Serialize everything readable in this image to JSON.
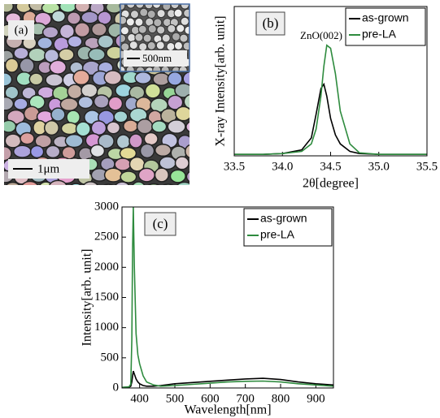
{
  "image_panel": {
    "label": "(a)",
    "scale_bar": "1μm",
    "inset_scale_bar": "500nm"
  },
  "chart_data": [
    {
      "type": "line",
      "label": "(b)",
      "annotation": "ZnO(002)",
      "xlabel": "2θ[degree]",
      "ylabel": "X-ray Intensity[arb. unit]",
      "xlim": [
        33.5,
        35.5
      ],
      "xticks": [
        33.5,
        {
          "value": 34,
          "label": "34.0"
        },
        34.5,
        {
          "value": 35,
          "label": "35.0"
        },
        35.5
      ],
      "ylim": [
        0,
        100
      ],
      "legend": "upper right",
      "x": [
        33.5,
        33.8,
        34.0,
        34.2,
        34.3,
        34.35,
        34.4,
        34.43,
        34.46,
        34.5,
        34.55,
        34.6,
        34.7,
        34.8,
        35.0,
        35.5
      ],
      "series": [
        {
          "name": "as-grown",
          "color": "#000000",
          "values": [
            1,
            1,
            1.5,
            4,
            12,
            28,
            45,
            48,
            40,
            25,
            14,
            8,
            3,
            1.5,
            1,
            1
          ]
        },
        {
          "name": "pre-LA",
          "color": "#2e8b3e",
          "values": [
            1,
            1,
            1.5,
            3,
            8,
            18,
            40,
            60,
            74,
            72,
            55,
            30,
            8,
            2,
            1,
            1
          ]
        }
      ]
    },
    {
      "type": "line",
      "label": "(c)",
      "xlabel": "Wavelength[nm]",
      "ylabel": "Intensity[arb. unit]",
      "xlim": [
        350,
        950
      ],
      "xticks": [
        400,
        500,
        600,
        700,
        800,
        900
      ],
      "ylim": [
        0,
        3000
      ],
      "yticks": [
        0,
        500,
        1000,
        1500,
        2000,
        2500,
        3000
      ],
      "legend": "upper right",
      "x": [
        350,
        370,
        375,
        378,
        380,
        382,
        385,
        390,
        395,
        400,
        410,
        420,
        440,
        460,
        500,
        550,
        600,
        650,
        700,
        750,
        800,
        850,
        900,
        950
      ],
      "series": [
        {
          "name": "as-grown",
          "color": "#000000",
          "values": [
            10,
            15,
            30,
            100,
            200,
            280,
            230,
            150,
            100,
            70,
            40,
            30,
            30,
            40,
            70,
            90,
            110,
            130,
            150,
            160,
            140,
            100,
            70,
            50
          ]
        },
        {
          "name": "pre-LA",
          "color": "#2e8b3e",
          "values": [
            10,
            20,
            60,
            800,
            2300,
            3000,
            2000,
            900,
            550,
            400,
            200,
            100,
            50,
            30,
            40,
            60,
            80,
            100,
            110,
            115,
            100,
            70,
            50,
            30
          ]
        }
      ]
    }
  ]
}
